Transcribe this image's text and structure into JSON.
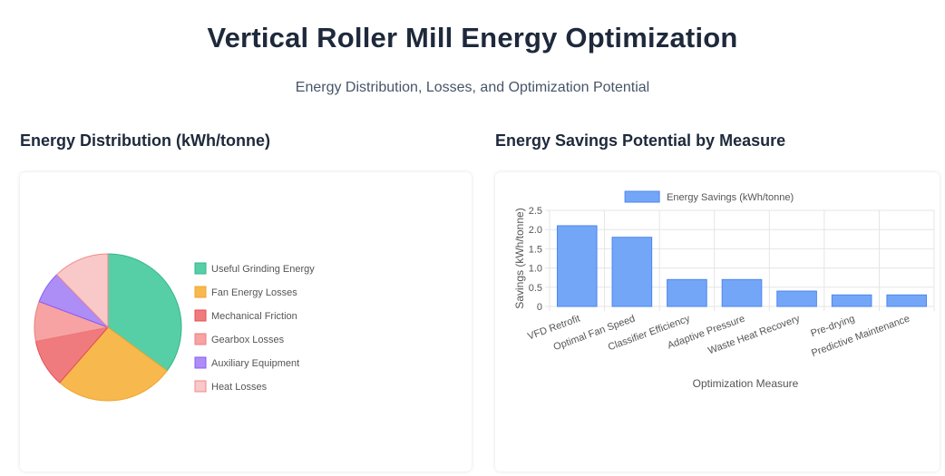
{
  "header": {
    "title": "Vertical Roller Mill Energy Optimization",
    "subtitle": "Energy Distribution, Losses, and Optimization Potential"
  },
  "sections": {
    "left_title": "Energy Distribution (kWh/tonne)",
    "right_title": "Energy Savings Potential by Measure"
  },
  "chart_data": [
    {
      "type": "pie",
      "title": "Energy Distribution (kWh/tonne)",
      "categories": [
        "Useful Grinding Energy",
        "Fan Energy Losses",
        "Mechanical Friction",
        "Gearbox Losses",
        "Auxiliary Equipment",
        "Heat Losses"
      ],
      "values": [
        10.0,
        7.5,
        3.0,
        2.5,
        2.0,
        3.5
      ],
      "colors": [
        "#57cfa6",
        "#f7b84e",
        "#f07b7e",
        "#f7a3a3",
        "#ad8df6",
        "#f9c8c8"
      ],
      "border_colors": [
        "#34b58a",
        "#f0a52f",
        "#e34c52",
        "#ec7c7c",
        "#8b5cf6",
        "#f08a8a"
      ],
      "legend": "right"
    },
    {
      "type": "bar",
      "title": "Energy Savings Potential by Measure",
      "categories": [
        "VFD Retrofit",
        "Optimal Fan Speed",
        "Classifier Efficiency",
        "Adaptive Pressure",
        "Waste Heat Recovery",
        "Pre-drying",
        "Predictive Maintenance"
      ],
      "series": [
        {
          "name": "Energy Savings (kWh/tonne)",
          "values": [
            2.1,
            1.8,
            0.7,
            0.7,
            0.4,
            0.3,
            0.3
          ]
        }
      ],
      "xlabel": "Optimization Measure",
      "ylabel": "Savings (kWh/tonne)",
      "ylim": [
        0,
        2.5
      ],
      "yticks": [
        "0",
        "0.5",
        "1.0",
        "1.5",
        "2.0",
        "2.5"
      ],
      "bar_color": "#73a6f7",
      "bar_border": "#4f86ee",
      "legend": "top"
    }
  ]
}
